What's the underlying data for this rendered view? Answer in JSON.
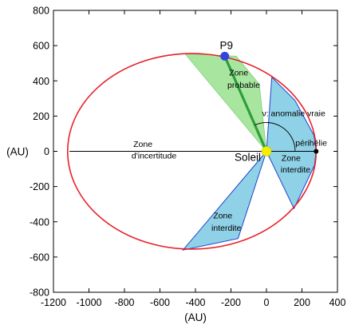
{
  "chart_data": {
    "type": "scatter",
    "xlabel": "(AU)",
    "ylabel": "(AU)",
    "xlim": [
      -1200,
      400
    ],
    "ylim": [
      -800,
      800
    ],
    "x_ticks": [
      -1200,
      -1000,
      -800,
      -600,
      -400,
      -200,
      0,
      200,
      400
    ],
    "y_ticks": [
      -800,
      -600,
      -400,
      -200,
      0,
      200,
      400,
      600,
      800
    ],
    "grid": false,
    "orbit": {
      "center": [
        -420,
        0
      ],
      "semi_major_axis": 700,
      "semi_minor_axis": 555,
      "color": "#e8202a"
    },
    "perihelion_line": {
      "x": [
        -1110,
        280
      ],
      "y": [
        0,
        0
      ]
    },
    "probable_zone": {
      "color": "#a8e6a0",
      "polygon": [
        [
          0,
          0
        ],
        [
          -460,
          555
        ],
        [
          -170,
          540
        ],
        [
          -40,
          380
        ]
      ]
    },
    "forbidden_zones": {
      "color": "#8fd1e6",
      "upper": [
        [
          0,
          0
        ],
        [
          30,
          420
        ],
        [
          160,
          290
        ],
        [
          268,
          90
        ],
        [
          280,
          0
        ],
        [
          270,
          -80
        ],
        [
          155,
          -325
        ]
      ],
      "lower": [
        [
          0,
          0
        ],
        [
          -470,
          -560
        ],
        [
          -160,
          -495
        ]
      ]
    },
    "p9_direction": {
      "x": [
        0,
        -235
      ],
      "y": [
        0,
        540
      ],
      "color": "#2e9e3a"
    },
    "points": [
      {
        "label": "P9",
        "x": -235,
        "y": 540,
        "color": "#3344dd"
      },
      {
        "label": "Soleil",
        "x": 0,
        "y": 0,
        "color": "#f4f000"
      },
      {
        "label": "périhélie",
        "x": 280,
        "y": 0,
        "color": "#000000"
      }
    ],
    "annotations": [
      {
        "text": "Zone",
        "x": -210,
        "y": 430
      },
      {
        "text": "probable",
        "x": -220,
        "y": 360
      },
      {
        "text": "ν: anomalie vraie",
        "x": -25,
        "y": 200
      },
      {
        "text": "Zone",
        "x": -750,
        "y": 25
      },
      {
        "text": "d'incertitude",
        "x": -760,
        "y": -40
      },
      {
        "text": "Zone",
        "x": 85,
        "y": -55
      },
      {
        "text": "interdite",
        "x": 80,
        "y": -120
      },
      {
        "text": "Zone",
        "x": -300,
        "y": -380
      },
      {
        "text": "interdite",
        "x": -310,
        "y": -450
      }
    ]
  }
}
